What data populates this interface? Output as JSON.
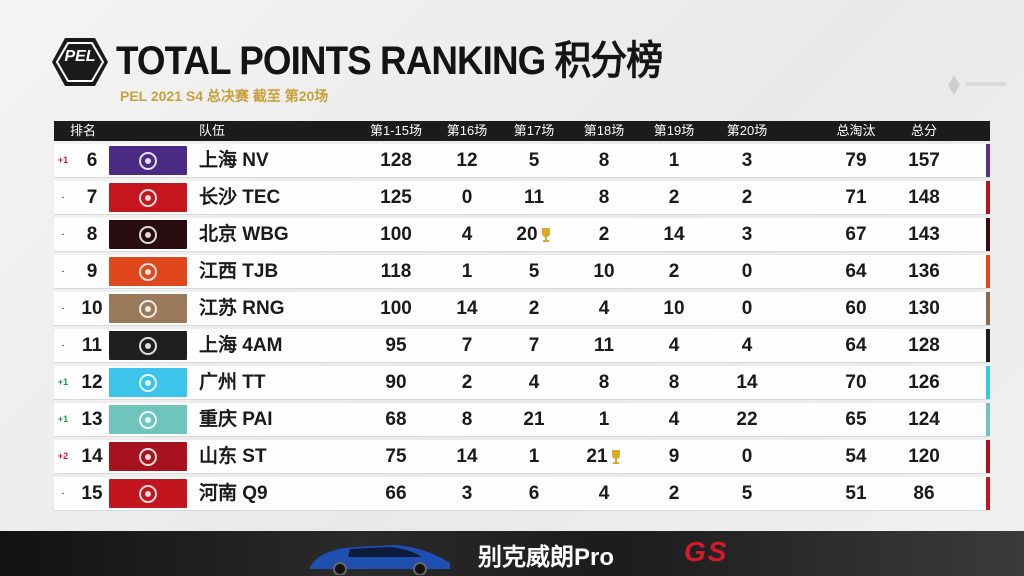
{
  "header": {
    "logo_text": "PEL",
    "title_en": "TOTAL POINTS RANKING",
    "title_cn": "积分榜",
    "subtitle": "PEL 2021 S4 总决赛 截至 第20场"
  },
  "columns": [
    "排名",
    "队伍",
    "第1-15场",
    "第16场",
    "第17场",
    "第18场",
    "第19场",
    "第20场",
    "总淘汰",
    "总分"
  ],
  "rows": [
    {
      "change": "+1",
      "change_color": "#d11a2a",
      "rank": "6",
      "team": "上海 NV",
      "logo_color": "#4b2a83",
      "accent": "#5a2d91",
      "g1_15": "128",
      "g16": "12",
      "g17": "5",
      "g18": "8",
      "g19": "1",
      "g20": "3",
      "kills": "79",
      "total": "157"
    },
    {
      "change": "-",
      "change_color": "#777777",
      "rank": "7",
      "team": "长沙 TEC",
      "logo_color": "#c4161c",
      "accent": "#b0161b",
      "g1_15": "125",
      "g16": "0",
      "g17": "11",
      "g18": "8",
      "g19": "2",
      "g20": "2",
      "kills": "71",
      "total": "148"
    },
    {
      "change": "-",
      "change_color": "#777777",
      "rank": "8",
      "team": "北京 WBG",
      "logo_color": "#2a0d10",
      "accent": "#3a0d12",
      "g1_15": "100",
      "g16": "4",
      "g17": "20",
      "g18": "2",
      "g19": "14",
      "g20": "3",
      "kills": "67",
      "total": "143",
      "g17_trophy": true
    },
    {
      "change": "-",
      "change_color": "#777777",
      "rank": "9",
      "team": "江西 TJB",
      "logo_color": "#e0481c",
      "accent": "#e0481c",
      "g1_15": "118",
      "g16": "1",
      "g17": "5",
      "g18": "10",
      "g19": "2",
      "g20": "0",
      "kills": "64",
      "total": "136"
    },
    {
      "change": "-",
      "change_color": "#777777",
      "rank": "10",
      "team": "江苏 RNG",
      "logo_color": "#9a7a5a",
      "accent": "#8c6a4a",
      "g1_15": "100",
      "g16": "14",
      "g17": "2",
      "g18": "4",
      "g19": "10",
      "g20": "0",
      "kills": "60",
      "total": "130"
    },
    {
      "change": "-",
      "change_color": "#777777",
      "rank": "11",
      "team": "上海 4AM",
      "logo_color": "#1e1e1e",
      "accent": "#1e1e1e",
      "g1_15": "95",
      "g16": "7",
      "g17": "7",
      "g18": "11",
      "g19": "4",
      "g20": "4",
      "kills": "64",
      "total": "128"
    },
    {
      "change": "+1",
      "change_color": "#1a9a3a",
      "rank": "12",
      "team": "广州 TT",
      "logo_color": "#3cc4ea",
      "accent": "#3cc4ea",
      "g1_15": "90",
      "g16": "2",
      "g17": "4",
      "g18": "8",
      "g19": "8",
      "g20": "14",
      "kills": "70",
      "total": "126"
    },
    {
      "change": "+1",
      "change_color": "#1a9a3a",
      "rank": "13",
      "team": "重庆 PAI",
      "logo_color": "#6fc4bd",
      "accent": "#6fc4bd",
      "g1_15": "68",
      "g16": "8",
      "g17": "21",
      "g18": "1",
      "g19": "4",
      "g20": "22",
      "kills": "65",
      "total": "124"
    },
    {
      "change": "+2",
      "change_color": "#d11a2a",
      "rank": "14",
      "team": "山东 ST",
      "logo_color": "#a8121e",
      "accent": "#a8121e",
      "g1_15": "75",
      "g16": "14",
      "g17": "1",
      "g18": "21",
      "g19": "9",
      "g20": "0",
      "kills": "54",
      "total": "120",
      "g18_trophy": true
    },
    {
      "change": "-",
      "change_color": "#777777",
      "rank": "15",
      "team": "河南 Q9",
      "logo_color": "#c2151e",
      "accent": "#c2151e",
      "g1_15": "66",
      "g16": "3",
      "g17": "6",
      "g18": "4",
      "g19": "2",
      "g20": "5",
      "kills": "51",
      "total": "86"
    }
  ],
  "footer": {
    "brand": "别克威朗Pro",
    "brand_suffix": "GS"
  }
}
